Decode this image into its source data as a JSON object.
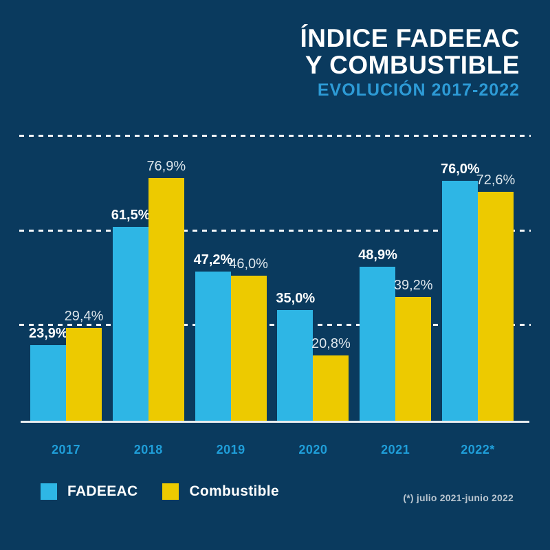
{
  "page": {
    "background_color": "#0a3a5e"
  },
  "header": {
    "title_line1": "ÍNDICE FADEEAC",
    "title_line2": "Y COMBUSTIBLE",
    "subtitle": "EVOLUCIÓN 2017-2022"
  },
  "chart_data": {
    "type": "bar",
    "title": "ÍNDICE FADEEAC Y COMBUSTIBLE",
    "subtitle": "EVOLUCIÓN 2017-2022",
    "categories": [
      "2017",
      "2018",
      "2019",
      "2020",
      "2021",
      "2022*"
    ],
    "series": [
      {
        "name": "FADEEAC",
        "color": "#2eb6e5",
        "values": [
          23.9,
          61.5,
          47.2,
          35.0,
          48.9,
          76.0
        ],
        "labels": [
          "23,9%",
          "61,5%",
          "47,2%",
          "35,0%",
          "48,9%",
          "76,0%"
        ]
      },
      {
        "name": "Combustible",
        "color": "#edca00",
        "values": [
          29.4,
          76.9,
          46.0,
          20.8,
          39.2,
          72.6
        ],
        "labels": [
          "29,4%",
          "76,9%",
          "46,0%",
          "20,8%",
          "39,2%",
          "72,6%"
        ]
      }
    ],
    "xlabel": "",
    "ylabel": "",
    "ylim": [
      0,
      100
    ],
    "gridline_values": [
      30,
      60,
      90
    ],
    "grid_style": "dashed-white",
    "legend_position": "bottom-left",
    "value_labels_shown": true
  },
  "footnote": "(*) julio 2021-junio 2022",
  "colors": {
    "background": "#0a3a5e",
    "title_text": "#ffffff",
    "subtitle_text": "#2d9bd6",
    "fadeeac_bar": "#2eb6e5",
    "combustible_bar": "#edca00",
    "year_label": "#1f9ed9",
    "baseline": "#e7ecef",
    "footnote_text": "#b9c5cf"
  }
}
